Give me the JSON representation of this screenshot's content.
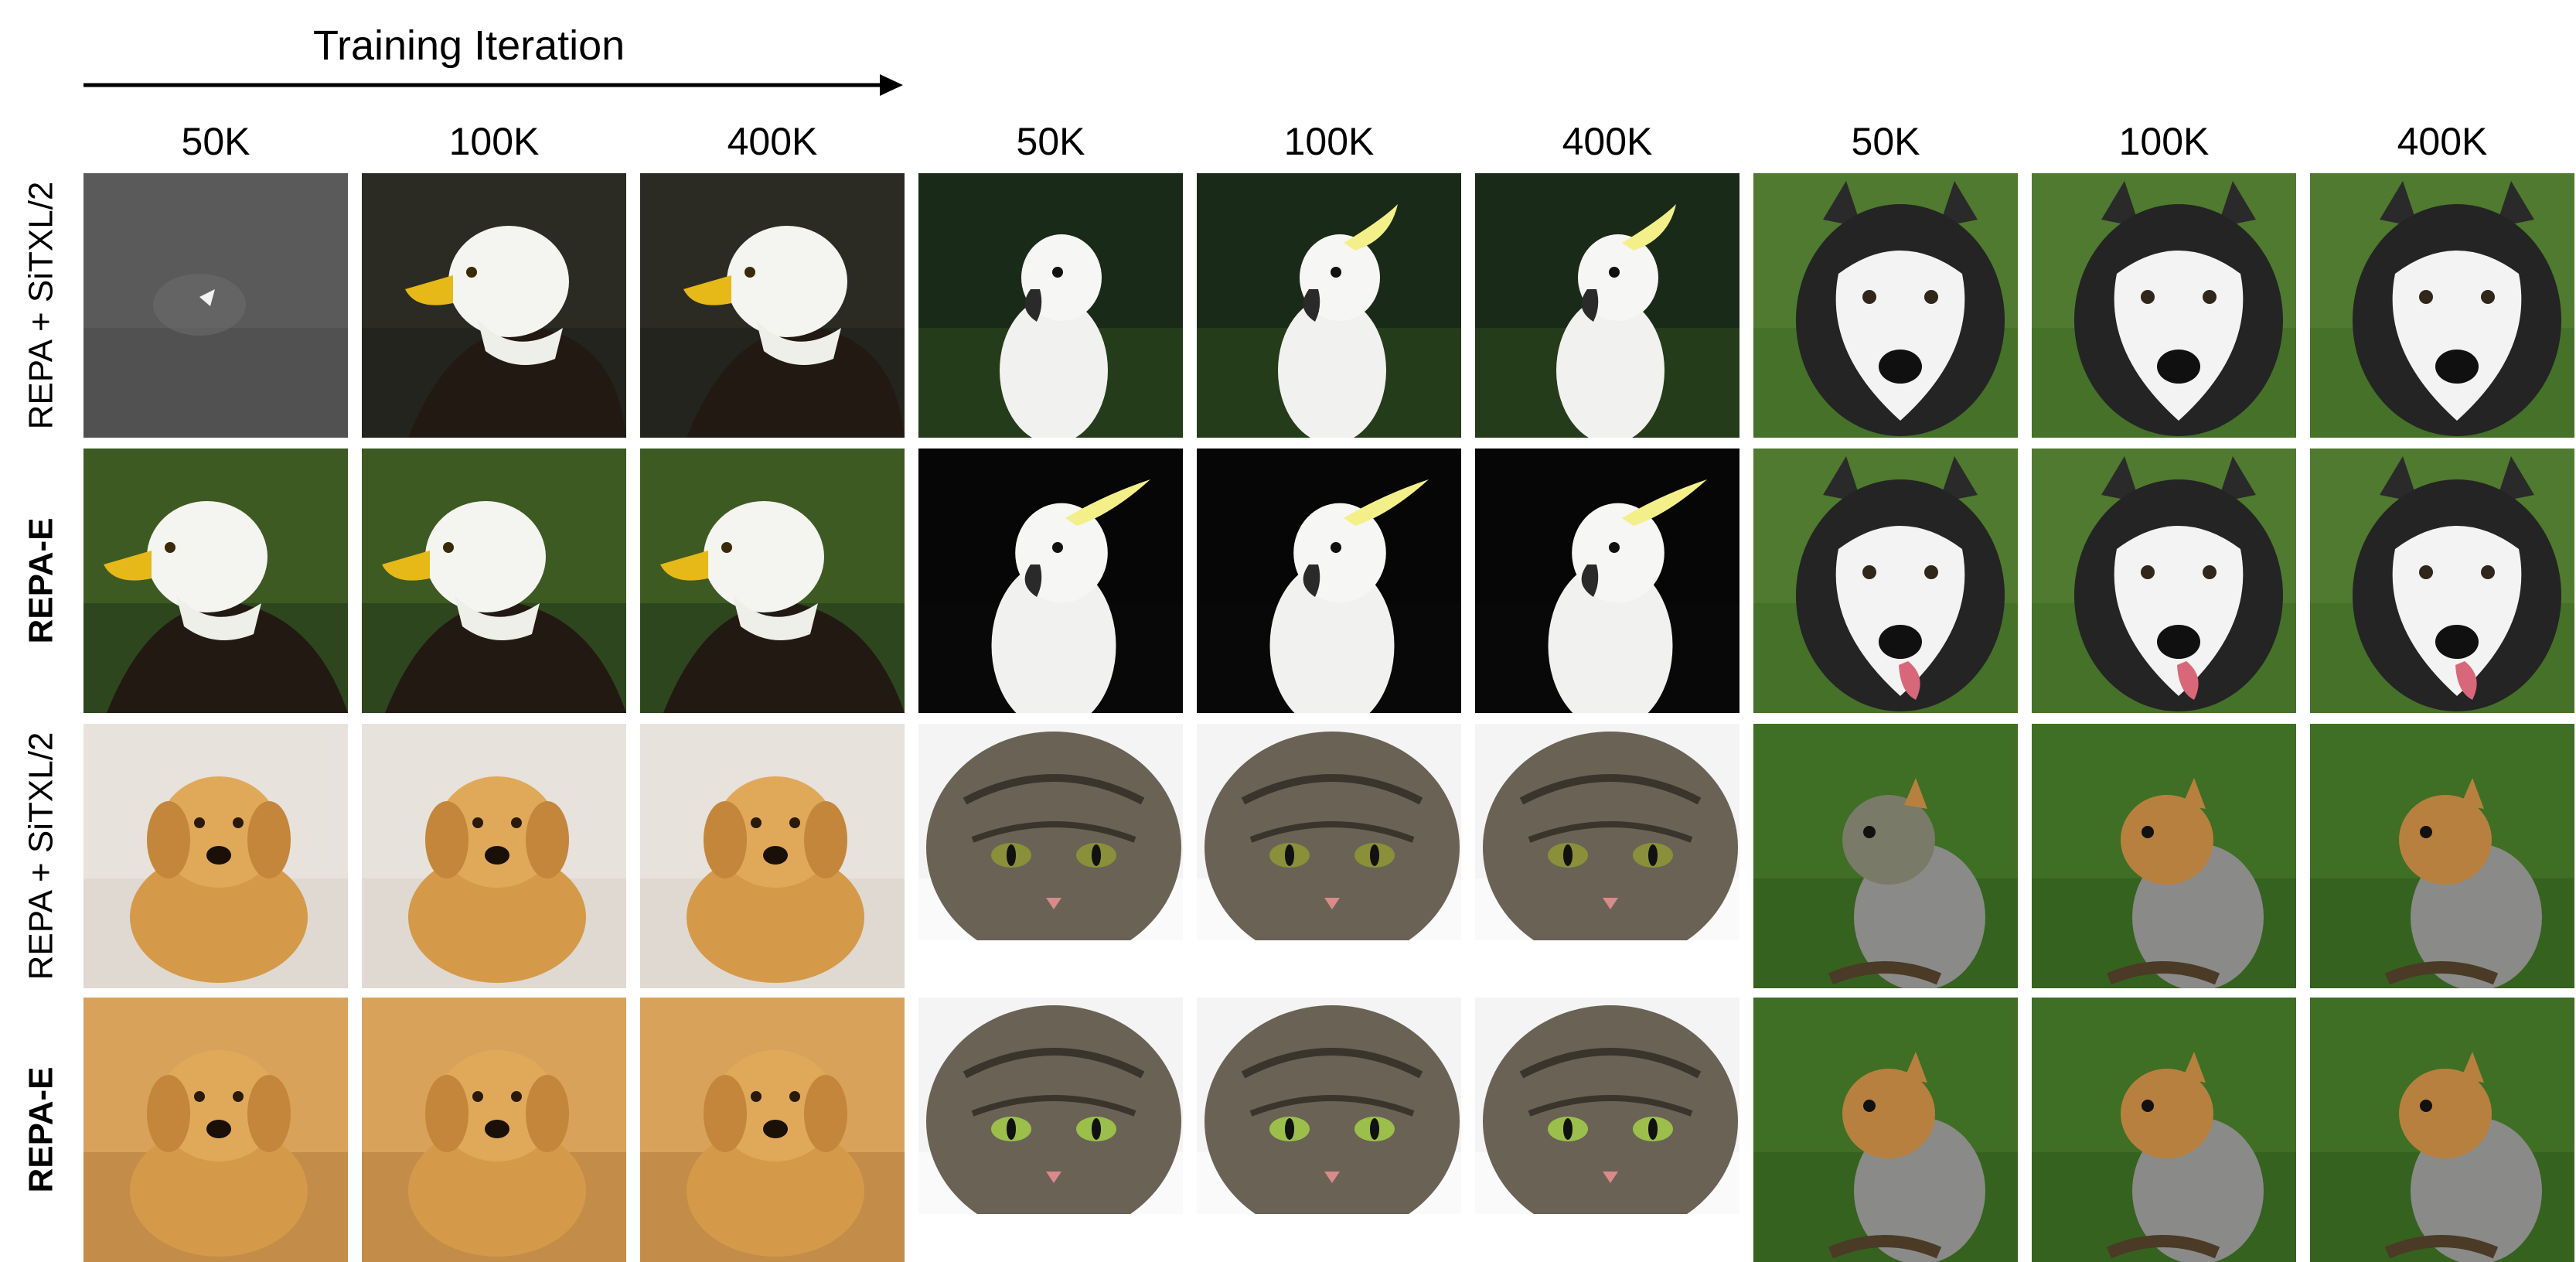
{
  "header": {
    "title": "Training Iteration",
    "iterations": [
      "50K",
      "100K",
      "400K",
      "50K",
      "100K",
      "400K",
      "50K",
      "100K",
      "400K"
    ]
  },
  "rows": [
    {
      "label": "REPA + SiTXL/2",
      "bold": false
    },
    {
      "label": "REPA-E",
      "bold": true
    },
    {
      "label": "REPA + SiTXL/2",
      "bold": false
    },
    {
      "label": "REPA-E",
      "bold": true
    }
  ],
  "subjects": {
    "top_rows": [
      "bald-eagle",
      "cockatoo",
      "husky"
    ],
    "bottom_rows": [
      "golden-retriever",
      "tabby-cat",
      "squirrel"
    ]
  }
}
